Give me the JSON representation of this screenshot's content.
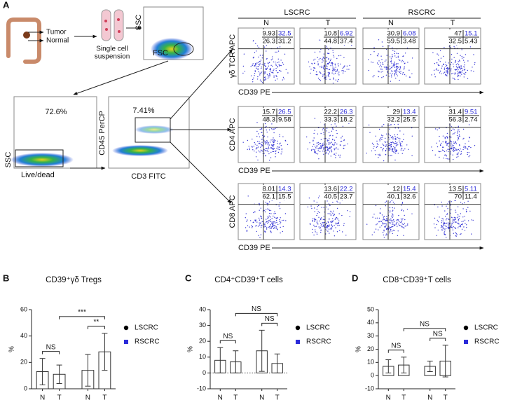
{
  "figure": {
    "panel_a": {
      "letter": "A",
      "tumor": "Tumor",
      "normal": "Normal",
      "suspension": [
        "Single cell",
        "suspension"
      ],
      "gate_y": "SSC",
      "gate_x": "FSC",
      "live_pct": "72.6%",
      "live_y": "SSC",
      "live_x": "Live/dead",
      "cd45_pct": "7.41%",
      "cd45_y": "CD45 PerCP",
      "cd45_x": "CD3 FITC",
      "groups": [
        "LSCRC",
        "RSCRC"
      ],
      "columns": [
        "N",
        "T",
        "N",
        "T"
      ],
      "rows": [
        {
          "y_label": "γδ TCR APC",
          "x_label": "CD39 PE",
          "quadrants": [
            [
              "9.93",
              "32.5",
              "26.3",
              "31.2"
            ],
            [
              "10.8",
              "6.92",
              "44.8",
              "37.4"
            ],
            [
              "30.9",
              "6.08",
              "59.5",
              "3.48"
            ],
            [
              "47",
              "15.1",
              "32.5",
              "5.43"
            ]
          ]
        },
        {
          "y_label": "CD4 APC",
          "x_label": "CD39 PE",
          "quadrants": [
            [
              "15.7",
              "26.5",
              "48.3",
              "9.58"
            ],
            [
              "22.2",
              "26.3",
              "33.3",
              "18.2"
            ],
            [
              "29",
              "13.4",
              "32.2",
              "25.5"
            ],
            [
              "31.4",
              "9.51",
              "56.3",
              "2.74"
            ]
          ]
        },
        {
          "y_label": "CD8 APC",
          "x_label": "CD39 PE",
          "quadrants": [
            [
              "8.01",
              "14.3",
              "62.1",
              "15.5"
            ],
            [
              "13.6",
              "22.2",
              "40.5",
              "23.7"
            ],
            [
              "12",
              "15.4",
              "40.1",
              "32.6"
            ],
            [
              "13.5",
              "5.11",
              "70",
              "11.4"
            ]
          ]
        }
      ]
    }
  },
  "chart_data": [
    {
      "type": "bar",
      "letter": "B",
      "title": "CD39⁺γδ Tregs",
      "y_label": "%",
      "categories": [
        "N",
        "T",
        "N",
        "T"
      ],
      "series": [
        {
          "name": "LSCRC",
          "color": "#000000",
          "marker": "circle",
          "values": [
            13,
            11,
            null,
            null
          ],
          "errors": [
            10,
            7,
            null,
            null
          ]
        },
        {
          "name": "RSCRC",
          "color": "#2b2bd9",
          "marker": "square",
          "values": [
            null,
            null,
            14,
            28
          ],
          "errors": [
            null,
            null,
            12,
            14
          ]
        }
      ],
      "ylim": [
        0,
        60
      ],
      "yticks": [
        0,
        20,
        40,
        60
      ],
      "annotations": [
        "NS",
        "***",
        "**"
      ],
      "zero_line": false
    },
    {
      "type": "bar",
      "letter": "C",
      "title": "CD4⁺CD39⁺T cells",
      "y_label": "%",
      "categories": [
        "N",
        "T",
        "N",
        "T"
      ],
      "series": [
        {
          "name": "LSCRC",
          "color": "#000000",
          "marker": "circle",
          "values": [
            8,
            7,
            null,
            null
          ],
          "errors": [
            8,
            7,
            null,
            null
          ]
        },
        {
          "name": "RSCRC",
          "color": "#2b2bd9",
          "marker": "square",
          "values": [
            null,
            null,
            14,
            6
          ],
          "errors": [
            null,
            null,
            13,
            6
          ]
        }
      ],
      "ylim": [
        -10,
        40
      ],
      "yticks": [
        -10,
        0,
        10,
        20,
        30,
        40
      ],
      "annotations": [
        "NS",
        "NS",
        "NS"
      ],
      "zero_line": true
    },
    {
      "type": "bar",
      "letter": "D",
      "title": "CD8⁺CD39⁺T cells",
      "y_label": "%",
      "categories": [
        "N",
        "T",
        "N",
        "T"
      ],
      "series": [
        {
          "name": "LSCRC",
          "color": "#000000",
          "marker": "circle",
          "values": [
            7,
            8,
            null,
            null
          ],
          "errors": [
            5,
            6,
            null,
            null
          ]
        },
        {
          "name": "RSCRC",
          "color": "#2b2bd9",
          "marker": "square",
          "values": [
            null,
            null,
            7,
            11
          ],
          "errors": [
            null,
            null,
            4,
            12
          ]
        }
      ],
      "ylim": [
        -10,
        50
      ],
      "yticks": [
        -10,
        0,
        10,
        20,
        30,
        40,
        50
      ],
      "annotations": [
        "NS",
        "NS",
        "NS"
      ],
      "zero_line": false
    }
  ]
}
